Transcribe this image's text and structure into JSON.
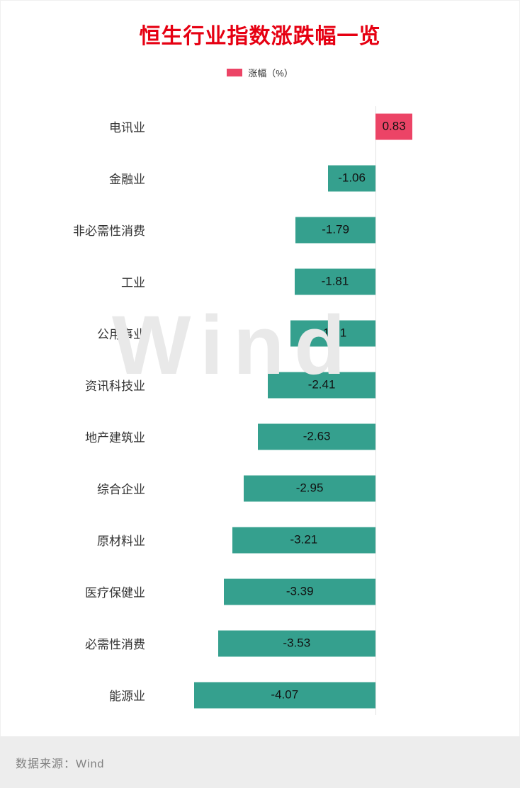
{
  "title": "恒生行业指数涨跌幅一览",
  "legend": {
    "label": "涨幅（%）"
  },
  "watermark": "Wind",
  "source": "数据来源：Wind",
  "colors": {
    "title": "#e60012",
    "positive": "#ec4466",
    "negative": "#35a08e",
    "axis": "#e3e3e3"
  },
  "chart_data": {
    "type": "bar",
    "orientation": "horizontal",
    "title": "恒生行业指数涨跌幅一览",
    "series_name": "涨幅（%）",
    "categories": [
      "电讯业",
      "金融业",
      "非必需性消费",
      "工业",
      "公用事业",
      "资讯科技业",
      "地产建筑业",
      "综合企业",
      "原材料业",
      "医疗保健业",
      "必需性消费",
      "能源业"
    ],
    "values": [
      0.83,
      -1.06,
      -1.79,
      -1.81,
      -1.91,
      -2.41,
      -2.63,
      -2.95,
      -3.21,
      -3.39,
      -3.53,
      -4.07
    ],
    "value_format": "0.00",
    "xlim": [
      -4.5,
      1.0
    ],
    "grid": false,
    "legend_position": "top",
    "positive_color": "#ec4466",
    "negative_color": "#35a08e"
  }
}
